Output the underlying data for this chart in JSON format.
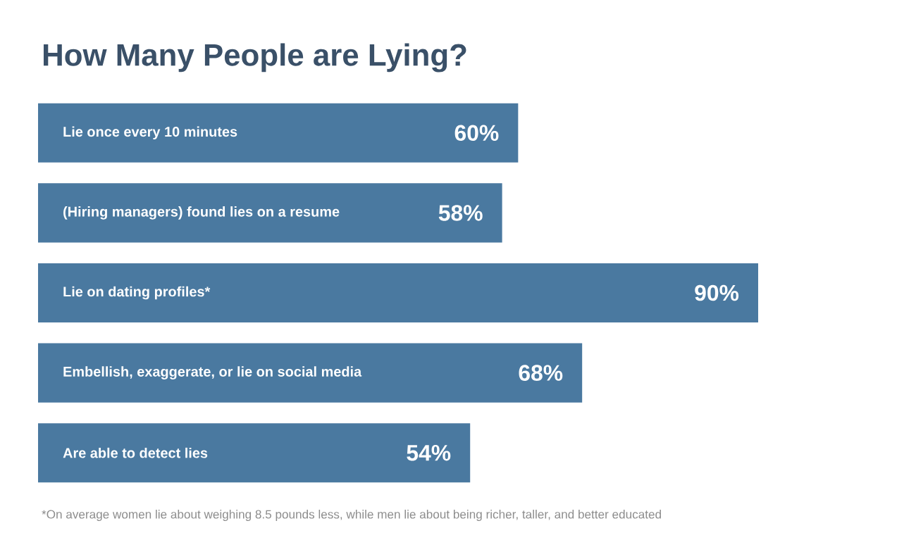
{
  "chart_data": {
    "type": "bar",
    "orientation": "horizontal",
    "title": "How Many People are Lying?",
    "categories": [
      "Lie once every 10 minutes",
      "(Hiring managers) found lies on a resume",
      "Lie on dating profiles*",
      "Embellish, exaggerate, or lie on social media",
      "Are able to detect lies"
    ],
    "values": [
      60,
      58,
      90,
      68,
      54
    ],
    "value_labels": [
      "60%",
      "58%",
      "90%",
      "68%",
      "54%"
    ],
    "color": "#4a79a0",
    "annotations": [
      "*On average women lie about weighing 8.5 pounds less, while men lie about being richer, taller, and better educated"
    ]
  }
}
